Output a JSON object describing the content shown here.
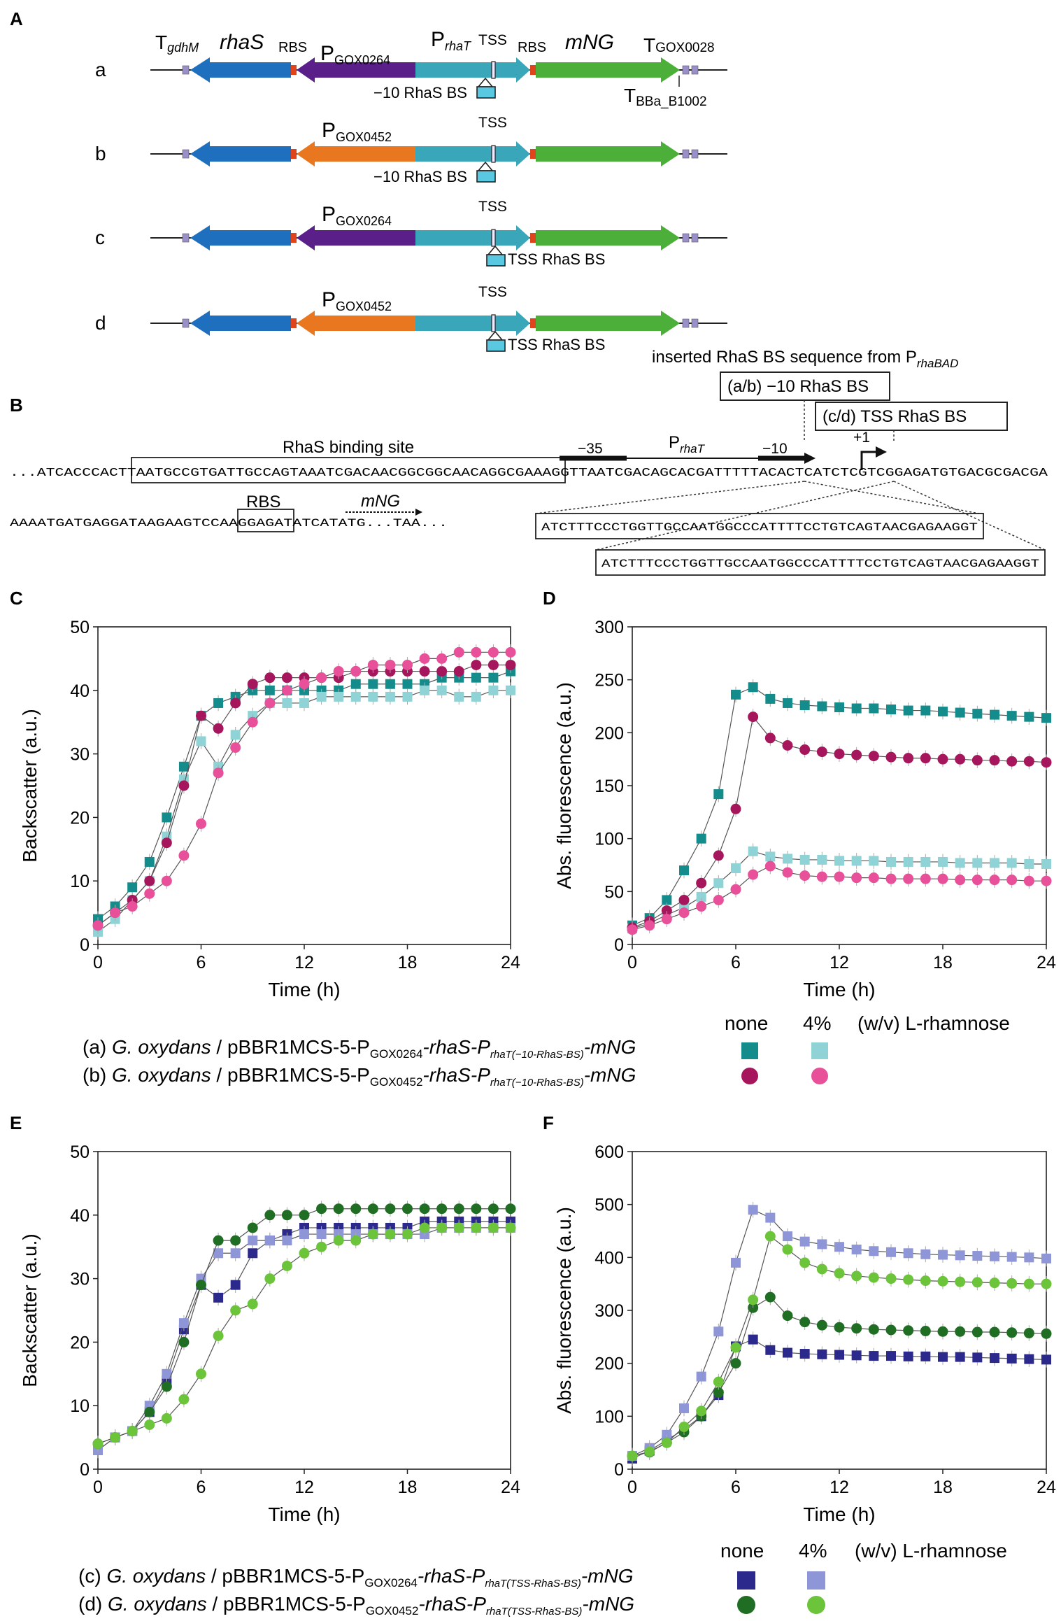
{
  "panel_labels": {
    "A": "A",
    "B": "B",
    "C": "C",
    "D": "D",
    "E": "E",
    "F": "F"
  },
  "panelA": {
    "rows": [
      {
        "id": "a",
        "promoter": "GOX0264",
        "site": "−10 RhaS BS"
      },
      {
        "id": "b",
        "promoter": "GOX0452",
        "site": "−10 RhaS BS"
      },
      {
        "id": "c",
        "promoter": "GOX0264",
        "site": "TSS RhaS BS"
      },
      {
        "id": "d",
        "promoter": "GOX0452",
        "site": "TSS RhaS BS"
      }
    ],
    "labels": {
      "T_gdhM": "gdhM",
      "T": "T",
      "rhaS": "rhaS",
      "RBS": "RBS",
      "P": "P",
      "rhaT": "rhaT",
      "TSS": "TSS",
      "mNG": "mNG",
      "T_GOX0028": "GOX0028",
      "T_BBa": "BBa_B1002"
    },
    "colors": {
      "rhaS": "#1f6fbf",
      "P_GOX0264": "#5b1f8a",
      "P_GOX0452": "#e8771f",
      "P_rhaT": "#3aa6b9",
      "mNG": "#4caf3a",
      "RBS": "#e0441c",
      "term": "#9a8fc8",
      "bs": "#5ac8e0"
    }
  },
  "panelB": {
    "inserted_label": "inserted RhaS BS sequence from P",
    "inserted_sub": "rhaBAD",
    "box_ab": "(a/b) −10 RhaS BS",
    "box_cd": "(c/d) TSS RhaS BS",
    "rhas_bs": "RhaS binding site",
    "m35": "−35",
    "p_rhat": "P",
    "p_rhat_sub": "rhaT",
    "m10": "−10",
    "plus1": "+1",
    "seq_prefix": "...ATCACCCAC",
    "seq_box": "TTAATGCCGTGATTGCCAGTAAATCGACAACGGCGGCAACAGGCGAAAG",
    "seq_rest": "GTTAATCGACAGCACGATTTTTACACTCATCTCGTCGGAGATGTGACGCGACGA",
    "seq2_a": "AAAATGATGAGGATAAGAAGTCCA",
    "seq2_box": "AGGAGA",
    "seq2_b": "TATCATATG...TAA...",
    "rbs": "RBS",
    "mng": "mNG",
    "insert_seq": "ATCTTTCCCTGGTTGCCAATGGCCCATTTTCCTGTCAGTAACGAGAAGGT"
  },
  "legend_top": {
    "none": "none",
    "four": "4%",
    "unit": "(w/v) L-rhamnose",
    "a_prefix": "(a) ",
    "b_prefix": "(b) ",
    "org": "G. oxydans",
    "slash": " / pBBR1MCS-5-P",
    "a_prom": "GOX0264",
    "b_prom": "GOX0452",
    "mid": "-rhaS-P",
    "sub": "rhaT(−10-RhaS-BS)",
    "end": "-mNG"
  },
  "legend_bottom": {
    "none": "none",
    "four": "4%",
    "unit": "(w/v) L-rhamnose",
    "c_prefix": "(c) ",
    "d_prefix": "(d) ",
    "org": "G. oxydans",
    "slash": " / pBBR1MCS-5-P",
    "c_prom": "GOX0264",
    "d_prom": "GOX0452",
    "mid": "-rhaS-P",
    "sub": "rhaT(TSS-RhaS-BS)",
    "end": "-mNG"
  },
  "chart_data": [
    {
      "id": "C",
      "type": "scatter",
      "xlabel": "Time (h)",
      "ylabel": "Backscatter (a.u.)",
      "xlim": [
        0,
        24
      ],
      "ylim": [
        0,
        50
      ],
      "xticks": [
        0,
        6,
        12,
        18,
        24
      ],
      "yticks": [
        0,
        10,
        20,
        30,
        40,
        50
      ],
      "series": [
        {
          "name": "(a) none",
          "marker": "square",
          "color": "#148c8c",
          "x": [
            0,
            1,
            2,
            3,
            4,
            5,
            6,
            7,
            8,
            9,
            10,
            11,
            12,
            13,
            14,
            15,
            16,
            17,
            18,
            19,
            20,
            21,
            22,
            23,
            24
          ],
          "y": [
            4,
            6,
            9,
            13,
            20,
            28,
            36,
            38,
            39,
            40,
            40,
            40,
            40,
            40,
            40,
            41,
            41,
            41,
            41,
            41,
            42,
            42,
            42,
            42,
            43
          ]
        },
        {
          "name": "(a) 4%",
          "marker": "square",
          "color": "#8fd3d6",
          "x": [
            0,
            1,
            2,
            3,
            4,
            5,
            6,
            7,
            8,
            9,
            10,
            11,
            12,
            13,
            14,
            15,
            16,
            17,
            18,
            19,
            20,
            21,
            22,
            23,
            24
          ],
          "y": [
            2,
            4,
            7,
            10,
            17,
            26,
            32,
            28,
            33,
            36,
            38,
            38,
            38,
            39,
            39,
            39,
            39,
            39,
            39,
            40,
            40,
            39,
            39,
            40,
            40
          ]
        },
        {
          "name": "(b) none",
          "marker": "circle",
          "color": "#a5165c",
          "x": [
            0,
            1,
            2,
            3,
            4,
            5,
            6,
            7,
            8,
            9,
            10,
            11,
            12,
            13,
            14,
            15,
            16,
            17,
            18,
            19,
            20,
            21,
            22,
            23,
            24
          ],
          "y": [
            3,
            5,
            7,
            10,
            16,
            25,
            36,
            34,
            38,
            41,
            42,
            42,
            42,
            42,
            42,
            43,
            43,
            43,
            43,
            43,
            43,
            43,
            44,
            44,
            44
          ]
        },
        {
          "name": "(b) 4%",
          "marker": "circle",
          "color": "#e8509a",
          "x": [
            0,
            1,
            2,
            3,
            4,
            5,
            6,
            7,
            8,
            9,
            10,
            11,
            12,
            13,
            14,
            15,
            16,
            17,
            18,
            19,
            20,
            21,
            22,
            23,
            24
          ],
          "y": [
            3,
            5,
            6,
            8,
            10,
            14,
            19,
            27,
            31,
            35,
            38,
            40,
            41,
            42,
            43,
            43,
            44,
            44,
            44,
            45,
            45,
            46,
            46,
            46,
            46
          ]
        }
      ]
    },
    {
      "id": "D",
      "type": "scatter",
      "xlabel": "Time (h)",
      "ylabel": "Abs. fluorescence (a.u.)",
      "xlim": [
        0,
        24
      ],
      "ylim": [
        0,
        300
      ],
      "xticks": [
        0,
        6,
        12,
        18,
        24
      ],
      "yticks": [
        0,
        50,
        100,
        150,
        200,
        250,
        300
      ],
      "series": [
        {
          "name": "(a) none",
          "marker": "square",
          "color": "#148c8c",
          "x": [
            0,
            1,
            2,
            3,
            4,
            5,
            6,
            7,
            8,
            9,
            10,
            11,
            12,
            13,
            14,
            15,
            16,
            17,
            18,
            19,
            20,
            21,
            22,
            23,
            24
          ],
          "y": [
            18,
            25,
            42,
            70,
            100,
            142,
            236,
            243,
            232,
            228,
            226,
            225,
            224,
            223,
            223,
            222,
            221,
            221,
            220,
            219,
            218,
            217,
            216,
            215,
            214
          ]
        },
        {
          "name": "(a) 4%",
          "marker": "square",
          "color": "#8fd3d6",
          "x": [
            0,
            1,
            2,
            3,
            4,
            5,
            6,
            7,
            8,
            9,
            10,
            11,
            12,
            13,
            14,
            15,
            16,
            17,
            18,
            19,
            20,
            21,
            22,
            23,
            24
          ],
          "y": [
            15,
            20,
            28,
            35,
            45,
            58,
            72,
            88,
            83,
            81,
            80,
            80,
            79,
            79,
            79,
            78,
            78,
            78,
            78,
            77,
            77,
            77,
            77,
            76,
            76
          ]
        },
        {
          "name": "(b) none",
          "marker": "circle",
          "color": "#a5165c",
          "x": [
            0,
            1,
            2,
            3,
            4,
            5,
            6,
            7,
            8,
            9,
            10,
            11,
            12,
            13,
            14,
            15,
            16,
            17,
            18,
            19,
            20,
            21,
            22,
            23,
            24
          ],
          "y": [
            16,
            22,
            32,
            42,
            58,
            84,
            128,
            215,
            195,
            188,
            184,
            182,
            180,
            179,
            178,
            177,
            176,
            176,
            175,
            175,
            174,
            174,
            173,
            173,
            172
          ]
        },
        {
          "name": "(b) 4%",
          "marker": "circle",
          "color": "#e8509a",
          "x": [
            0,
            1,
            2,
            3,
            4,
            5,
            6,
            7,
            8,
            9,
            10,
            11,
            12,
            13,
            14,
            15,
            16,
            17,
            18,
            19,
            20,
            21,
            22,
            23,
            24
          ],
          "y": [
            14,
            18,
            24,
            30,
            36,
            42,
            52,
            66,
            74,
            68,
            65,
            64,
            64,
            63,
            63,
            62,
            62,
            62,
            62,
            61,
            61,
            61,
            61,
            60,
            60
          ]
        }
      ]
    },
    {
      "id": "E",
      "type": "scatter",
      "xlabel": "Time (h)",
      "ylabel": "Backscatter (a.u.)",
      "xlim": [
        0,
        24
      ],
      "ylim": [
        0,
        50
      ],
      "xticks": [
        0,
        6,
        12,
        18,
        24
      ],
      "yticks": [
        0,
        10,
        20,
        30,
        40,
        50
      ],
      "series": [
        {
          "name": "(c) none",
          "marker": "square",
          "color": "#2b2a8c",
          "x": [
            0,
            1,
            2,
            3,
            4,
            5,
            6,
            7,
            8,
            9,
            10,
            11,
            12,
            13,
            14,
            15,
            16,
            17,
            18,
            19,
            20,
            21,
            22,
            23,
            24
          ],
          "y": [
            3,
            5,
            6,
            9,
            14,
            22,
            29,
            27,
            29,
            34,
            36,
            37,
            38,
            38,
            38,
            38,
            38,
            38,
            38,
            39,
            39,
            39,
            39,
            39,
            39
          ]
        },
        {
          "name": "(c) 4%",
          "marker": "square",
          "color": "#8f96d8",
          "x": [
            0,
            1,
            2,
            3,
            4,
            5,
            6,
            7,
            8,
            9,
            10,
            11,
            12,
            13,
            14,
            15,
            16,
            17,
            18,
            19,
            20,
            21,
            22,
            23,
            24
          ],
          "y": [
            3,
            5,
            6,
            10,
            15,
            23,
            30,
            34,
            34,
            36,
            36,
            36,
            37,
            37,
            37,
            37,
            37,
            37,
            37,
            37,
            38,
            38,
            38,
            38,
            38
          ]
        },
        {
          "name": "(d) none",
          "marker": "circle",
          "color": "#206e24",
          "x": [
            0,
            1,
            2,
            3,
            4,
            5,
            6,
            7,
            8,
            9,
            10,
            11,
            12,
            13,
            14,
            15,
            16,
            17,
            18,
            19,
            20,
            21,
            22,
            23,
            24
          ],
          "y": [
            4,
            5,
            6,
            9,
            13,
            20,
            29,
            36,
            36,
            38,
            40,
            40,
            40,
            41,
            41,
            41,
            41,
            41,
            41,
            41,
            41,
            41,
            41,
            41,
            41
          ]
        },
        {
          "name": "(d) 4%",
          "marker": "circle",
          "color": "#6cc43a",
          "x": [
            0,
            1,
            2,
            3,
            4,
            5,
            6,
            7,
            8,
            9,
            10,
            11,
            12,
            13,
            14,
            15,
            16,
            17,
            18,
            19,
            20,
            21,
            22,
            23,
            24
          ],
          "y": [
            4,
            5,
            6,
            7,
            8,
            11,
            15,
            21,
            25,
            26,
            30,
            32,
            34,
            35,
            36,
            36,
            37,
            37,
            37,
            38,
            38,
            38,
            38,
            38,
            38
          ]
        }
      ]
    },
    {
      "id": "F",
      "type": "scatter",
      "xlabel": "Time (h)",
      "ylabel": "Abs. fluorescence (a.u.)",
      "xlim": [
        0,
        24
      ],
      "ylim": [
        0,
        600
      ],
      "xticks": [
        0,
        6,
        12,
        18,
        24
      ],
      "yticks": [
        0,
        100,
        200,
        300,
        400,
        500,
        600
      ],
      "series": [
        {
          "name": "(c) none",
          "marker": "square",
          "color": "#2b2a8c",
          "x": [
            0,
            1,
            2,
            3,
            4,
            5,
            6,
            7,
            8,
            9,
            10,
            11,
            12,
            13,
            14,
            15,
            16,
            17,
            18,
            19,
            20,
            21,
            22,
            23,
            24
          ],
          "y": [
            20,
            35,
            55,
            75,
            100,
            140,
            232,
            245,
            225,
            220,
            218,
            217,
            216,
            215,
            214,
            214,
            213,
            213,
            212,
            212,
            211,
            210,
            209,
            208,
            207
          ]
        },
        {
          "name": "(c) 4%",
          "marker": "square",
          "color": "#8f96d8",
          "x": [
            0,
            1,
            2,
            3,
            4,
            5,
            6,
            7,
            8,
            9,
            10,
            11,
            12,
            13,
            14,
            15,
            16,
            17,
            18,
            19,
            20,
            21,
            22,
            23,
            24
          ],
          "y": [
            25,
            40,
            65,
            115,
            175,
            260,
            390,
            490,
            475,
            440,
            430,
            425,
            420,
            415,
            412,
            410,
            408,
            406,
            405,
            404,
            403,
            402,
            401,
            400,
            398
          ]
        },
        {
          "name": "(d) none",
          "marker": "circle",
          "color": "#206e24",
          "x": [
            0,
            1,
            2,
            3,
            4,
            5,
            6,
            7,
            8,
            9,
            10,
            11,
            12,
            13,
            14,
            15,
            16,
            17,
            18,
            19,
            20,
            21,
            22,
            23,
            24
          ],
          "y": [
            25,
            32,
            50,
            70,
            100,
            145,
            200,
            305,
            325,
            290,
            278,
            272,
            268,
            266,
            264,
            263,
            262,
            261,
            260,
            260,
            259,
            259,
            258,
            257,
            256
          ]
        },
        {
          "name": "(d) 4%",
          "marker": "circle",
          "color": "#6cc43a",
          "x": [
            0,
            1,
            2,
            3,
            4,
            5,
            6,
            7,
            8,
            9,
            10,
            11,
            12,
            13,
            14,
            15,
            16,
            17,
            18,
            19,
            20,
            21,
            22,
            23,
            24
          ],
          "y": [
            25,
            33,
            50,
            80,
            110,
            165,
            230,
            320,
            440,
            415,
            390,
            378,
            370,
            365,
            362,
            360,
            358,
            356,
            355,
            354,
            353,
            352,
            351,
            350,
            350
          ]
        }
      ]
    }
  ]
}
